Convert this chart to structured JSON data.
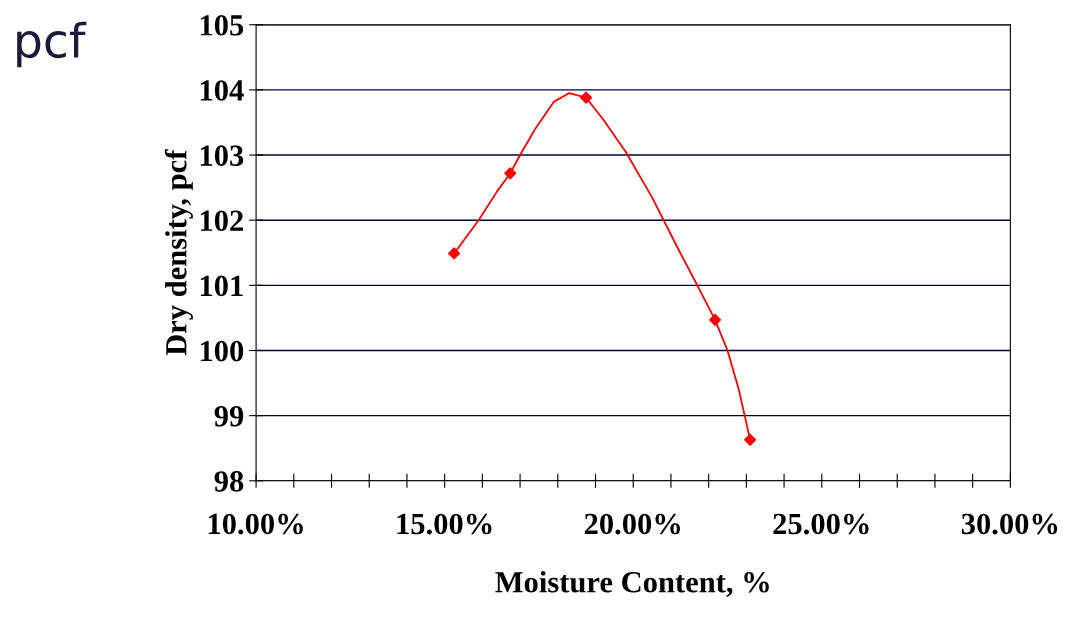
{
  "chart_data": {
    "type": "line",
    "xlabel": "Moisture Content, %",
    "ylabel": "Dry density, pcf",
    "annotations": [
      "pcf"
    ],
    "series": [
      {
        "type": "line",
        "color": "#ff0000",
        "marker": "none",
        "x": [
          15.25,
          15.9,
          16.4,
          16.74,
          17.0,
          17.4,
          17.9,
          18.3,
          18.75,
          19.2,
          19.8,
          20.5,
          21.2,
          21.7,
          22.17,
          22.5,
          22.8,
          23.1
        ],
        "values": [
          101.49,
          102.0,
          102.45,
          102.72,
          103.0,
          103.4,
          103.82,
          103.95,
          103.88,
          103.55,
          103.05,
          102.35,
          101.55,
          101.0,
          100.47,
          100.0,
          99.4,
          98.63
        ]
      },
      {
        "type": "scatter",
        "color": "#ff0000",
        "marker": "diamond",
        "x": [
          15.25,
          16.74,
          18.75,
          22.17,
          23.1
        ],
        "values": [
          101.49,
          102.72,
          103.88,
          100.47,
          98.63
        ]
      }
    ],
    "xlim": [
      10,
      30
    ],
    "xticks": [
      {
        "value": 10,
        "label": "10.00%"
      },
      {
        "value": 11,
        "label": null
      },
      {
        "value": 12,
        "label": null
      },
      {
        "value": 13,
        "label": null
      },
      {
        "value": 14,
        "label": null
      },
      {
        "value": 15,
        "label": "15.00%"
      },
      {
        "value": 16,
        "label": null
      },
      {
        "value": 17,
        "label": null
      },
      {
        "value": 18,
        "label": null
      },
      {
        "value": 19,
        "label": null
      },
      {
        "value": 20,
        "label": "20.00%"
      },
      {
        "value": 21,
        "label": null
      },
      {
        "value": 22,
        "label": null
      },
      {
        "value": 23,
        "label": null
      },
      {
        "value": 24,
        "label": null
      },
      {
        "value": 25,
        "label": "25.00%"
      },
      {
        "value": 26,
        "label": null
      },
      {
        "value": 27,
        "label": null
      },
      {
        "value": 28,
        "label": null
      },
      {
        "value": 29,
        "label": null
      },
      {
        "value": 30,
        "label": "30.00%"
      }
    ],
    "ylim": [
      98,
      105
    ],
    "yticks": [
      98,
      99,
      100,
      101,
      102,
      103,
      104,
      105
    ],
    "grid": "y",
    "legend": false
  }
}
